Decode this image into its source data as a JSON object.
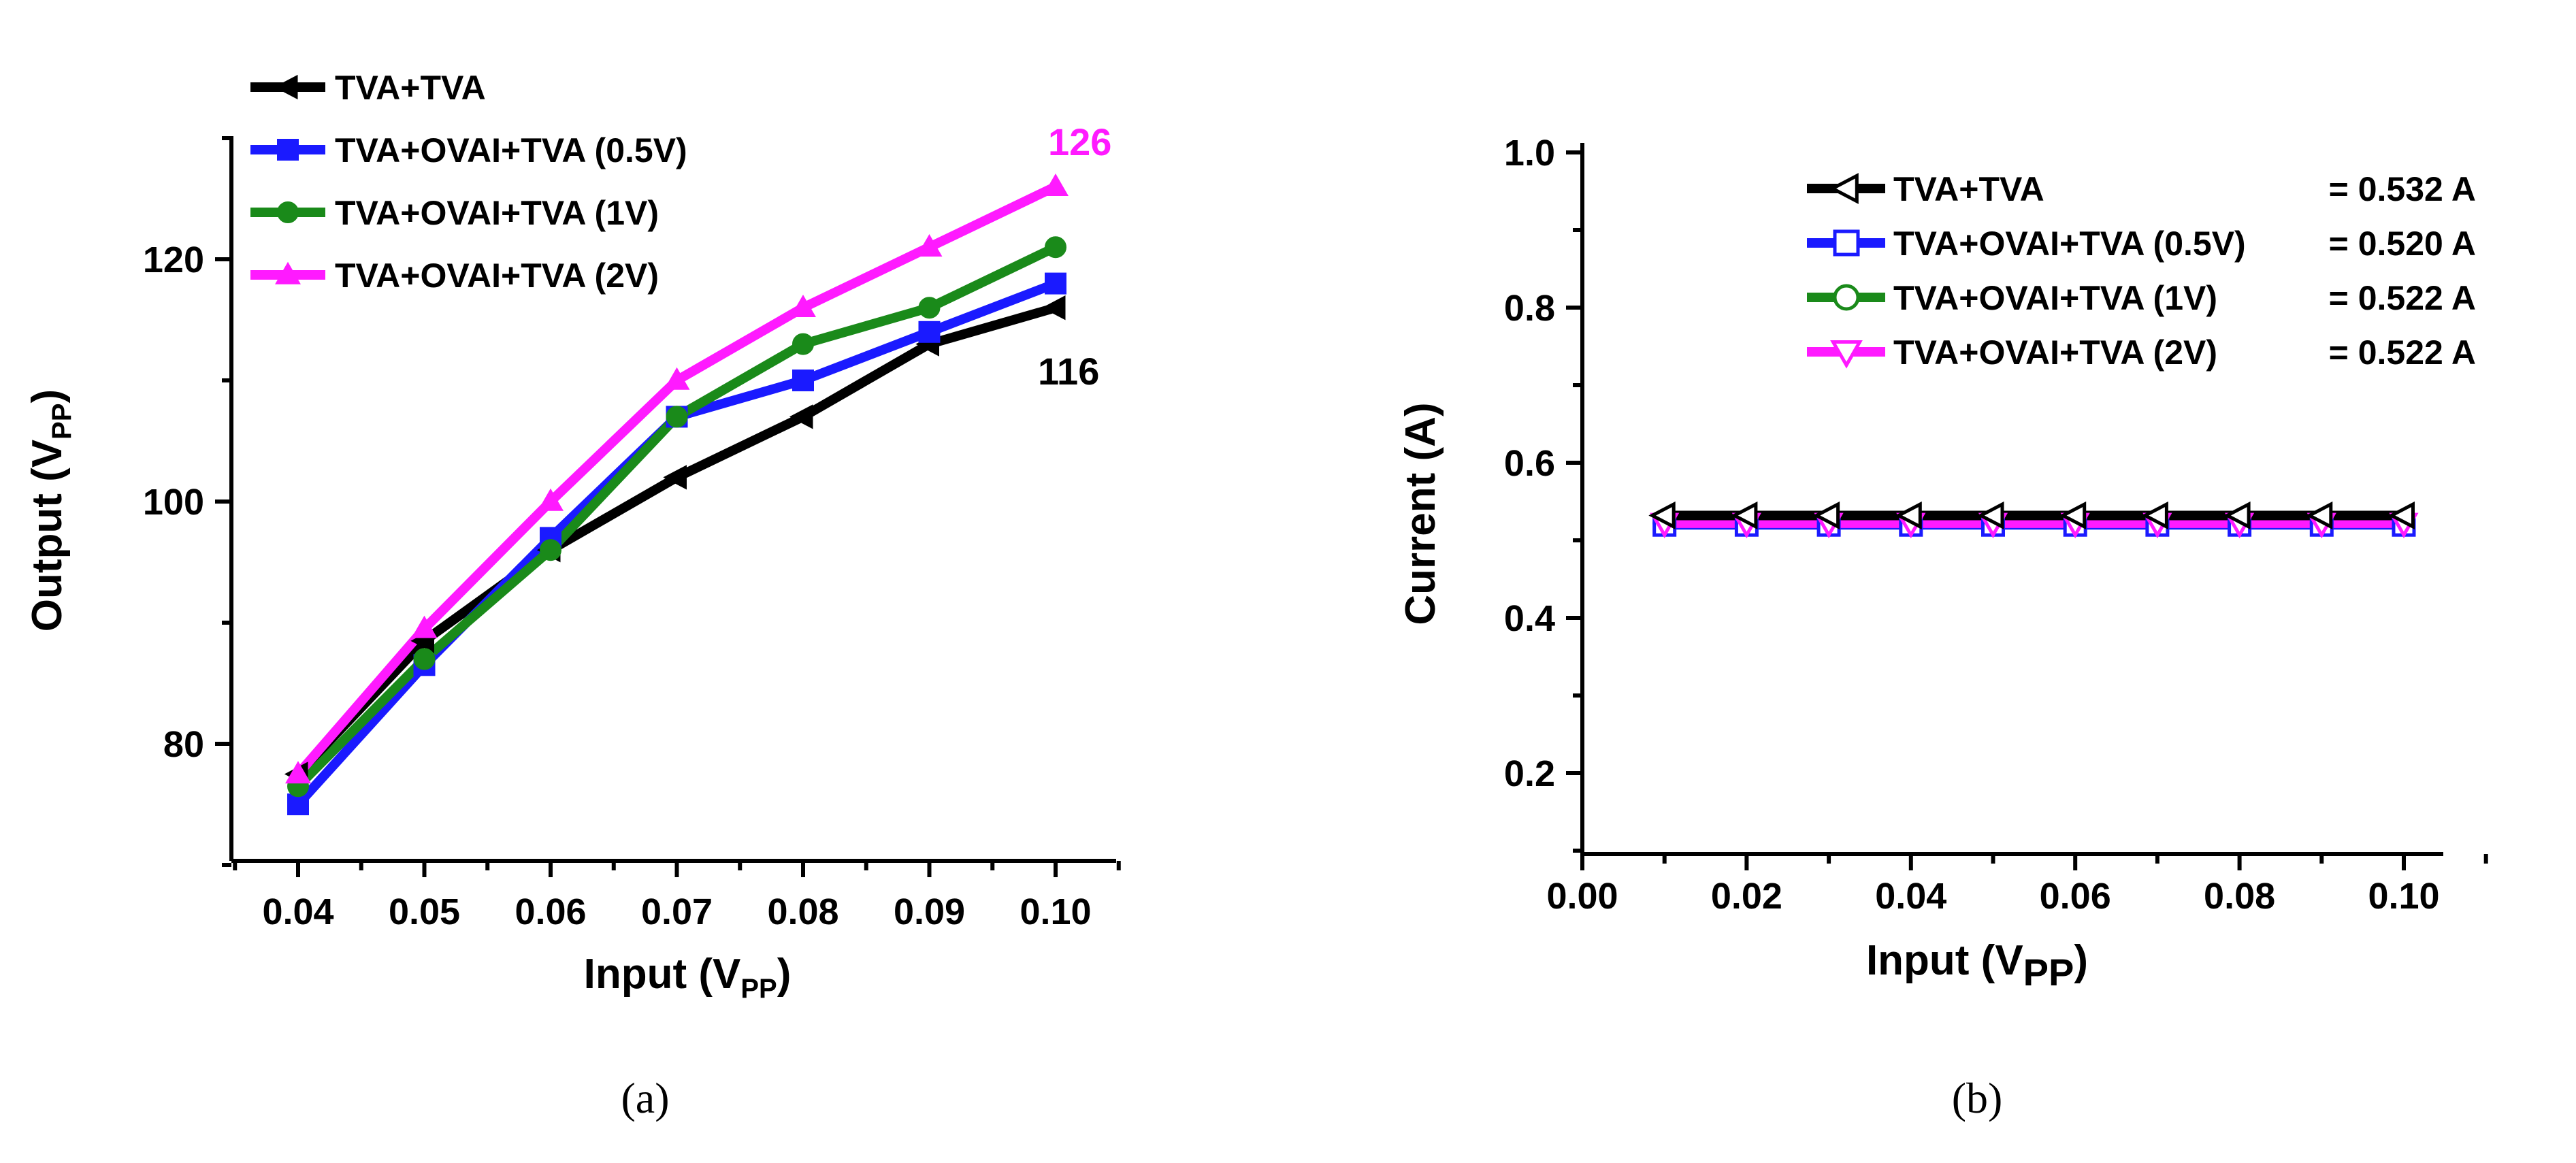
{
  "chart_data": [
    {
      "type": "line",
      "panel": "(a)",
      "caption": "(a)",
      "xlabel": "Input (V",
      "xlabel_sub": "PP",
      "xlabel_close": ")",
      "ylabel": "Output (V",
      "ylabel_sub": "PP",
      "ylabel_close": ")",
      "x": [
        0.04,
        0.05,
        0.06,
        0.07,
        0.08,
        0.09,
        0.1
      ],
      "xlim": [
        0.035,
        0.105
      ],
      "ylim": [
        70,
        130
      ],
      "xticks": [
        "0.04",
        "0.05",
        "0.06",
        "0.07",
        "0.08",
        "0.09",
        "0.10"
      ],
      "yticks": [
        {
          "value": 80,
          "label": "80"
        },
        {
          "value": 100,
          "label": "100"
        },
        {
          "value": 120,
          "label": "120"
        }
      ],
      "yminor": [
        70,
        90,
        110,
        130
      ],
      "legend_position": "top-left",
      "series": [
        {
          "name": "TVA+TVA",
          "color": "#000000",
          "marker": "triangle-left",
          "values": [
            77.5,
            88.5,
            96,
            102,
            107,
            113,
            116
          ]
        },
        {
          "name": "TVA+OVAI+TVA (0.5V)",
          "color": "#1a1aff",
          "marker": "square",
          "values": [
            75,
            86.5,
            97,
            107,
            110,
            114,
            118
          ]
        },
        {
          "name": "TVA+OVAI+TVA (1V)",
          "color": "#1a8a1a",
          "marker": "circle",
          "values": [
            76.5,
            87,
            96,
            107,
            113,
            116,
            121
          ]
        },
        {
          "name": "TVA+OVAI+TVA (2V)",
          "color": "#ff1aff",
          "marker": "triangle-up",
          "values": [
            77.5,
            89.5,
            100,
            110,
            116,
            121,
            126
          ]
        }
      ],
      "annotations": [
        {
          "text": "126",
          "color": "#ff1aff",
          "near_series": 3
        },
        {
          "text": "116",
          "color": "#000000",
          "near_series": 0
        }
      ]
    },
    {
      "type": "line",
      "panel": "(b)",
      "caption": "(b)",
      "xlabel": "Input (V",
      "xlabel_sub": "PP",
      "xlabel_close": ")",
      "ylabel": "Current (A)",
      "x": [
        0.01,
        0.02,
        0.03,
        0.04,
        0.05,
        0.06,
        0.07,
        0.08,
        0.09,
        0.1
      ],
      "xlim": [
        0.0,
        0.105
      ],
      "ylim": [
        0.1,
        1.0
      ],
      "xticks": [
        "0.00",
        "0.02",
        "0.04",
        "0.06",
        "0.08",
        "0.10"
      ],
      "yticks": [
        {
          "value": 0.2,
          "label": "0.2"
        },
        {
          "value": 0.4,
          "label": "0.4"
        },
        {
          "value": 0.6,
          "label": "0.6"
        },
        {
          "value": 0.8,
          "label": "0.8"
        },
        {
          "value": 1.0,
          "label": "1.0"
        }
      ],
      "legend_position": "top-right",
      "series": [
        {
          "name": "TVA+TVA",
          "value_text": "= 0.532 A",
          "color": "#000000",
          "marker": "open-triangle-left",
          "values": [
            0.532,
            0.532,
            0.532,
            0.532,
            0.532,
            0.532,
            0.532,
            0.532,
            0.532,
            0.532
          ]
        },
        {
          "name": "TVA+OVAI+TVA (0.5V)",
          "value_text": "= 0.520 A",
          "color": "#1a1aff",
          "marker": "open-square",
          "values": [
            0.52,
            0.52,
            0.52,
            0.52,
            0.52,
            0.52,
            0.52,
            0.52,
            0.52,
            0.52
          ]
        },
        {
          "name": "TVA+OVAI+TVA (1V)",
          "value_text": "= 0.522 A",
          "color": "#1a8a1a",
          "marker": "open-circle",
          "values": [
            0.522,
            0.522,
            0.522,
            0.522,
            0.522,
            0.522,
            0.522,
            0.522,
            0.522,
            0.522
          ]
        },
        {
          "name": "TVA+OVAI+TVA (2V)",
          "value_text": "= 0.522 A",
          "color": "#ff1aff",
          "marker": "open-triangle-down",
          "values": [
            0.522,
            0.522,
            0.522,
            0.522,
            0.522,
            0.522,
            0.522,
            0.522,
            0.522,
            0.522
          ]
        }
      ]
    }
  ]
}
